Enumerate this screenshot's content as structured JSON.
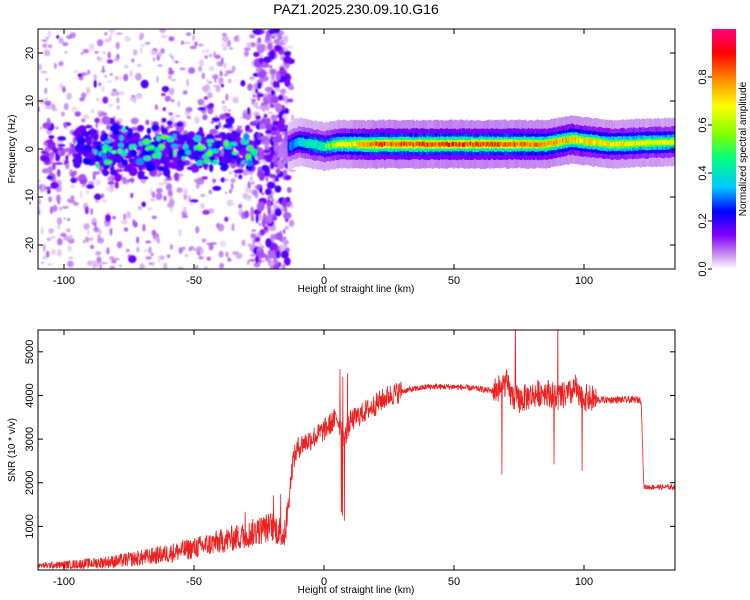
{
  "title": "PAZ1.2025.230.09.10.G16",
  "chart_data": [
    {
      "type": "heatmap",
      "xlabel": "Height of straight line (km)",
      "ylabel": "Frequency (Hz)",
      "xlim": [
        -110,
        135
      ],
      "ylim": [
        -25,
        25
      ],
      "xticks": [
        -100,
        -50,
        0,
        50,
        100
      ],
      "yticks": [
        -20,
        -10,
        0,
        10,
        20
      ],
      "colorbar": {
        "label": "Normalized spectral amplitude",
        "range": [
          0,
          1
        ],
        "ticks": [
          0.0,
          0.2,
          0.4,
          0.6,
          0.8
        ],
        "colors": [
          "#ffffff",
          "#c890f0",
          "#8000ff",
          "#0000ff",
          "#00c8ff",
          "#00ff80",
          "#80ff00",
          "#ffff00",
          "#ff8000",
          "#ff0000",
          "#ff0080"
        ]
      },
      "ridge": {
        "description_points_x": [
          -14,
          -10,
          -5,
          0,
          5,
          20,
          50,
          70,
          85,
          95,
          110,
          135
        ],
        "frequency_hz": [
          0.5,
          1.5,
          1.0,
          0.5,
          1.0,
          1.0,
          1.0,
          1.0,
          1.0,
          2.0,
          1.0,
          1.5
        ],
        "amplitude": [
          0.4,
          0.5,
          0.6,
          0.6,
          0.7,
          0.9,
          0.9,
          0.9,
          0.85,
          0.8,
          0.75,
          0.7
        ]
      }
    },
    {
      "type": "line",
      "xlabel": "Height of straight line (km)",
      "ylabel": "SNR (10 * v/v)",
      "xlim": [
        -110,
        135
      ],
      "ylim": [
        0,
        5500
      ],
      "xticks": [
        -100,
        -50,
        0,
        50,
        100
      ],
      "yticks": [
        1000,
        2000,
        3000,
        4000,
        5000
      ],
      "color": "#ee2020",
      "series": [
        {
          "x": [
            -110,
            -100,
            -90,
            -80,
            -70,
            -60,
            -50,
            -40,
            -30,
            -25,
            -20,
            -15,
            -12,
            -10,
            -8,
            -5,
            0,
            5,
            8,
            10,
            15,
            20,
            25,
            30,
            35,
            40,
            50,
            60,
            65,
            68,
            70,
            72,
            75,
            80,
            85,
            90,
            95,
            97,
            98,
            100,
            105,
            110,
            115,
            120,
            122,
            123,
            125,
            130,
            135
          ],
          "y": [
            100,
            120,
            150,
            200,
            280,
            380,
            500,
            650,
            800,
            900,
            1000,
            800,
            2500,
            2800,
            2900,
            3000,
            3200,
            3500,
            3000,
            3400,
            3600,
            3800,
            4000,
            4100,
            4150,
            4200,
            4200,
            4150,
            4100,
            4200,
            4300,
            4000,
            3900,
            4000,
            4100,
            3950,
            4050,
            4200,
            3900,
            3950,
            3900,
            3900,
            3900,
            3900,
            3900,
            1900,
            1900,
            1900,
            1900
          ]
        }
      ]
    }
  ]
}
